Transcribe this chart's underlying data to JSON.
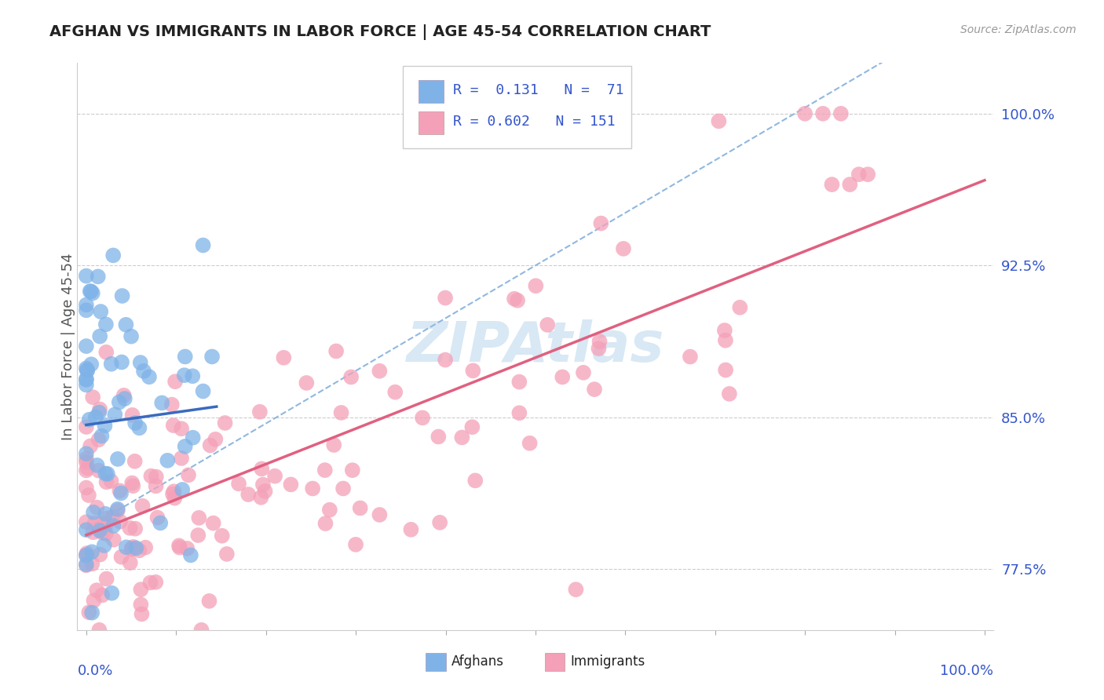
{
  "title": "AFGHAN VS IMMIGRANTS IN LABOR FORCE | AGE 45-54 CORRELATION CHART",
  "source_text": "Source: ZipAtlas.com",
  "ylabel": "In Labor Force | Age 45-54",
  "afghan_color": "#7fb3e8",
  "immigrant_color": "#f4a0b8",
  "afghan_line_color": "#3a6abf",
  "immigrant_line_color": "#e06080",
  "dash_line_color": "#90b8e0",
  "watermark_color": "#d8e8f4",
  "background_color": "#ffffff",
  "y_tick_positions": [
    0.775,
    0.85,
    0.925,
    1.0
  ],
  "y_tick_labels": [
    "77.5%",
    "85.0%",
    "92.5%",
    "100.0%"
  ],
  "xlim": [
    -0.01,
    1.01
  ],
  "ylim": [
    0.745,
    1.025
  ]
}
